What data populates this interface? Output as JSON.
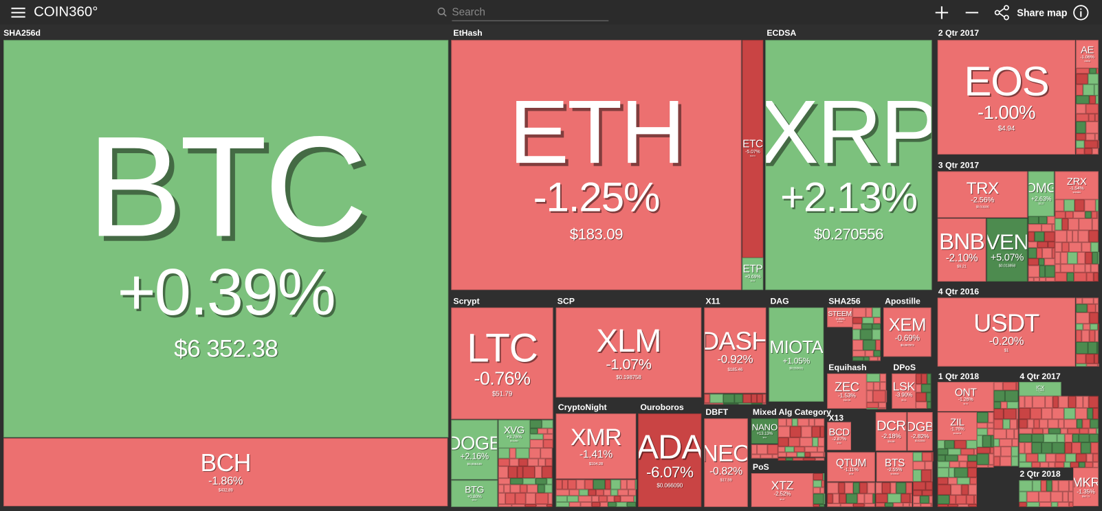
{
  "header": {
    "logo": "COIN360°",
    "search_placeholder": "Search",
    "share": "Share map"
  },
  "groups": [
    {
      "label": "SHA256d",
      "tiles": [
        {
          "symbol": "BTC",
          "change": "+0.39%",
          "price": "$6 352.38"
        },
        {
          "symbol": "BCH",
          "change": "-1.86%",
          "price": "$432.89"
        }
      ]
    },
    {
      "label": "EtHash",
      "tiles": [
        {
          "symbol": "ETH",
          "change": "-1.25%",
          "price": "$183.09"
        },
        {
          "symbol": "ETC",
          "change": "-5.07%",
          "price": "$10.74"
        },
        {
          "symbol": "ETP",
          "change": "+0.69%",
          "price": "$3.15"
        }
      ]
    },
    {
      "label": "ECDSA",
      "tiles": [
        {
          "symbol": "XRP",
          "change": "+2.13%",
          "price": "$0.270556"
        }
      ]
    },
    {
      "label": "2 Qtr 2017",
      "tiles": [
        {
          "symbol": "EOS",
          "change": "-1.00%",
          "price": "$4.94"
        },
        {
          "symbol": "AE",
          "change": "-1.06%",
          "price": "0.86449"
        }
      ]
    },
    {
      "label": "3 Qtr 2017",
      "tiles": [
        {
          "symbol": "TRX",
          "change": "-2.56%",
          "price": "$0.018206"
        },
        {
          "symbol": "OMG",
          "change": "+2.63%",
          "price": "$3.27"
        },
        {
          "symbol": "ZRX",
          "change": "-1.54%",
          "price": "$0.509829"
        },
        {
          "symbol": "BNB",
          "change": "-2.10%",
          "price": "$9.21"
        },
        {
          "symbol": "VEN",
          "change": "+5.07%",
          "price": "$0.013858"
        }
      ]
    },
    {
      "label": "4 Qtr 2016",
      "tiles": [
        {
          "symbol": "USDT",
          "change": "-0.20%",
          "price": "$1"
        }
      ]
    },
    {
      "label": "1 Qtr 2018",
      "tiles": [
        {
          "symbol": "ONT",
          "change": "-1.26%",
          "price": "$1.74"
        },
        {
          "symbol": "ZIL",
          "change": "-1.76%",
          "price": "$0.032735"
        }
      ]
    },
    {
      "label": "4 Qtr 2017",
      "tiles": [
        {
          "symbol": "ICX",
          "change": "+1.24%",
          "price": "$1.04"
        }
      ]
    },
    {
      "label": "2 Qtr 2018",
      "tiles": [
        {
          "symbol": "MKR",
          "change": "-1.35%",
          "price": "$307.73"
        }
      ]
    },
    {
      "label": "Scrypt",
      "tiles": [
        {
          "symbol": "LTC",
          "change": "-0.76%",
          "price": "$51.79"
        },
        {
          "symbol": "DOGE",
          "change": "+2.16%",
          "price": "$0.006449"
        },
        {
          "symbol": "BTG",
          "change": "+0.80%",
          "price": "$19.17"
        },
        {
          "symbol": "XVG",
          "change": "+3.76%",
          "price": "$0.012830"
        }
      ]
    },
    {
      "label": "SCP",
      "tiles": [
        {
          "symbol": "XLM",
          "change": "-1.07%",
          "price": "$0.198758"
        }
      ]
    },
    {
      "label": "X11",
      "tiles": [
        {
          "symbol": "DASH",
          "change": "-0.92%",
          "price": "$185.46"
        }
      ]
    },
    {
      "label": "DAG",
      "tiles": [
        {
          "symbol": "MIOTA",
          "change": "+1.05%",
          "price": "$0.553631"
        }
      ]
    },
    {
      "label": "SHA256",
      "tiles": [
        {
          "symbol": "STEEM",
          "change": "-3.05%",
          "price": "$0.701585"
        }
      ]
    },
    {
      "label": "Apostille",
      "tiles": [
        {
          "symbol": "XEM",
          "change": "-0.69%",
          "price": "$0.087972"
        }
      ]
    },
    {
      "label": "Equihash",
      "tiles": [
        {
          "symbol": "ZEC",
          "change": "-1.53%",
          "price": "$110.66"
        }
      ]
    },
    {
      "label": "DPoS",
      "tiles": [
        {
          "symbol": "LSK",
          "change": "-3.90%",
          "price": "$3.31"
        }
      ]
    },
    {
      "label": "X13",
      "tiles": [
        {
          "symbol": "BCD",
          "change": "-2.87%",
          "price": "$1.89"
        },
        {
          "symbol": "QTUM",
          "change": "-1.11%",
          "price": "$3.35"
        },
        {
          "symbol": "DCR",
          "change": "-2.18%",
          "price": "$34.86"
        },
        {
          "symbol": "DGB",
          "change": "-2.82%",
          "price": "$0.022050"
        },
        {
          "symbol": "BTS",
          "change": "-2.55%",
          "price": "$0.098340"
        }
      ]
    },
    {
      "label": "CryptoNight",
      "tiles": [
        {
          "symbol": "XMR",
          "change": "-1.41%",
          "price": "$104.28"
        }
      ]
    },
    {
      "label": "Ouroboros",
      "tiles": [
        {
          "symbol": "ADA",
          "change": "-6.07%",
          "price": "$0.066090"
        }
      ]
    },
    {
      "label": "DBFT",
      "tiles": [
        {
          "symbol": "NEO",
          "change": "-0.82%",
          "price": "$17.59"
        }
      ]
    },
    {
      "label": "Mixed Alg Category",
      "tiles": [
        {
          "symbol": "NANO",
          "change": "+13.13%",
          "price": "$2.01"
        }
      ]
    },
    {
      "label": "PoS",
      "tiles": [
        {
          "symbol": "XTZ",
          "change": "-2.52%",
          "price": "$1.27"
        }
      ]
    }
  ]
}
